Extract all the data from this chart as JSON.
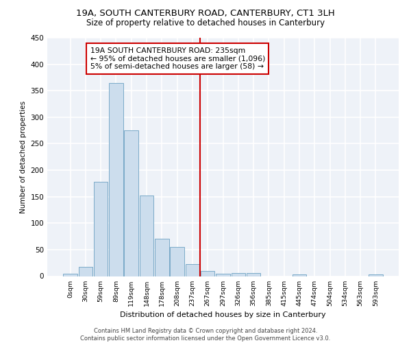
{
  "title_line1": "19A, SOUTH CANTERBURY ROAD, CANTERBURY, CT1 3LH",
  "title_line2": "Size of property relative to detached houses in Canterbury",
  "xlabel": "Distribution of detached houses by size in Canterbury",
  "ylabel": "Number of detached properties",
  "footnote": "Contains HM Land Registry data © Crown copyright and database right 2024.\nContains public sector information licensed under the Open Government Licence v3.0.",
  "bar_labels": [
    "0sqm",
    "30sqm",
    "59sqm",
    "89sqm",
    "119sqm",
    "148sqm",
    "178sqm",
    "208sqm",
    "237sqm",
    "267sqm",
    "297sqm",
    "326sqm",
    "356sqm",
    "385sqm",
    "415sqm",
    "445sqm",
    "474sqm",
    "504sqm",
    "534sqm",
    "563sqm",
    "593sqm"
  ],
  "bar_values": [
    4,
    17,
    178,
    364,
    275,
    152,
    70,
    55,
    23,
    10,
    5,
    6,
    6,
    0,
    0,
    3,
    0,
    0,
    0,
    0,
    3
  ],
  "bar_color": "#ccdded",
  "bar_edge_color": "#7aaac8",
  "vline_index": 8,
  "vline_color": "#cc0000",
  "annotation_box_text": "19A SOUTH CANTERBURY ROAD: 235sqm\n← 95% of detached houses are smaller (1,096)\n5% of semi-detached houses are larger (58) →",
  "annotation_box_color": "#cc0000",
  "ylim": [
    0,
    450
  ],
  "yticks": [
    0,
    50,
    100,
    150,
    200,
    250,
    300,
    350,
    400,
    450
  ],
  "background_color": "#eef2f8",
  "grid_color": "#ffffff",
  "fig_bg_color": "#ffffff"
}
